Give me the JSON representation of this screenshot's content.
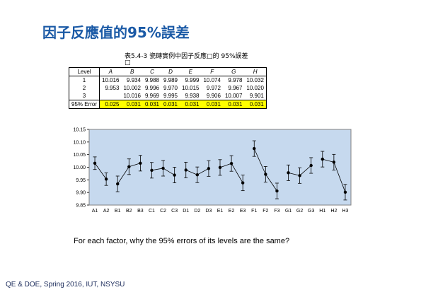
{
  "slide": {
    "title": "因子反應值的95%誤差",
    "table_caption": "表5.4-3 瓷磚實例中因子反應□的 95%誤差",
    "table_caption_cont": "□",
    "question": "For each factor, why the 95% errors of its levels are the same?",
    "footer": "QE & DOE, Spring 2016, IUT, NSYSU"
  },
  "table": {
    "headers": [
      "Level",
      "A",
      "B",
      "C",
      "D",
      "E",
      "F",
      "G",
      "H"
    ],
    "rows": [
      [
        "1",
        "10.016",
        "9.934",
        "9.988",
        "9.989",
        "9.999",
        "10.074",
        "9.978",
        "10.032"
      ],
      [
        "2",
        "9.953",
        "10.002",
        "9.996",
        "9.970",
        "10.015",
        "9.972",
        "9.967",
        "10.020"
      ],
      [
        "3",
        "",
        "10.016",
        "9.969",
        "9.995",
        "9.938",
        "9.906",
        "10.007",
        "9.901"
      ],
      [
        "95% Error",
        "0.025",
        "0.031",
        "0.031",
        "0.031",
        "0.031",
        "0.031",
        "0.031",
        "0.031"
      ]
    ]
  },
  "chart_data": {
    "type": "scatter",
    "title": "",
    "xlabel": "",
    "ylabel": "",
    "ylim": [
      9.85,
      10.15
    ],
    "yticks": [
      "9.85",
      "9.90",
      "9.95",
      "10.00",
      "10.05",
      "10.10",
      "10.15"
    ],
    "background_color": "#c6d9ee",
    "marker_color": "#000000",
    "grid": false,
    "categories": [
      "A1",
      "A2",
      "B1",
      "B2",
      "B3",
      "C1",
      "C2",
      "C3",
      "D1",
      "D2",
      "D3",
      "E1",
      "E2",
      "E3",
      "F1",
      "F2",
      "F3",
      "G1",
      "G2",
      "G3",
      "H1",
      "H2",
      "H3"
    ],
    "series": [
      {
        "values": [
          10.016,
          9.953
        ],
        "errors": [
          0.025,
          0.025
        ]
      },
      {
        "values": [
          9.934,
          10.002,
          10.016
        ],
        "errors": [
          0.031,
          0.031,
          0.031
        ]
      },
      {
        "values": [
          9.988,
          9.996,
          9.969
        ],
        "errors": [
          0.031,
          0.031,
          0.031
        ]
      },
      {
        "values": [
          9.989,
          9.97,
          9.995
        ],
        "errors": [
          0.031,
          0.031,
          0.031
        ]
      },
      {
        "values": [
          9.999,
          10.015,
          9.938
        ],
        "errors": [
          0.031,
          0.031,
          0.031
        ]
      },
      {
        "values": [
          10.074,
          9.972,
          9.906
        ],
        "errors": [
          0.031,
          0.031,
          0.031
        ]
      },
      {
        "values": [
          9.978,
          9.967,
          10.007
        ],
        "errors": [
          0.031,
          0.031,
          0.031
        ]
      },
      {
        "values": [
          10.032,
          10.02,
          9.901
        ],
        "errors": [
          0.031,
          0.031,
          0.031
        ]
      }
    ]
  }
}
